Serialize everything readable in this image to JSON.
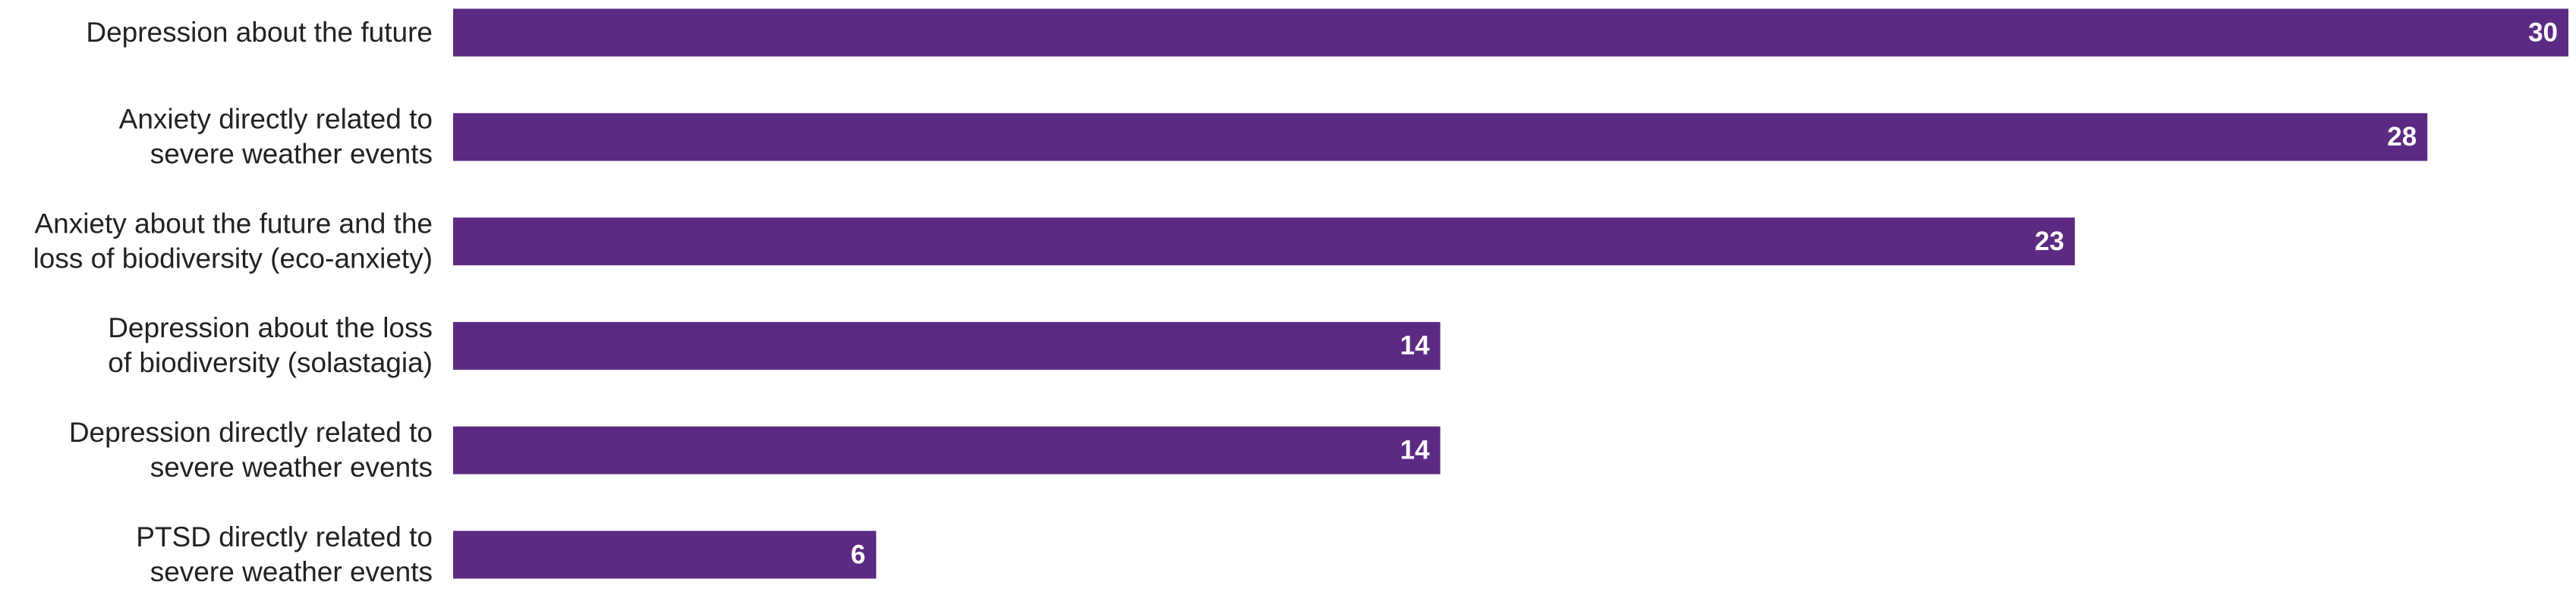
{
  "chart_data": {
    "type": "bar",
    "orientation": "horizontal",
    "categories": [
      [
        "Depression about the future"
      ],
      [
        "Anxiety directly related to",
        "severe weather events"
      ],
      [
        "Anxiety about the future and the",
        "loss of biodiversity (eco-anxiety)"
      ],
      [
        "Depression about the loss",
        "of biodiversity (solastagia)"
      ],
      [
        "Depression directly related to",
        "severe weather events"
      ],
      [
        "PTSD directly related to",
        "severe weather events"
      ]
    ],
    "values": [
      30,
      28,
      23,
      14,
      14,
      6
    ],
    "color": "#5c2a83"
  }
}
